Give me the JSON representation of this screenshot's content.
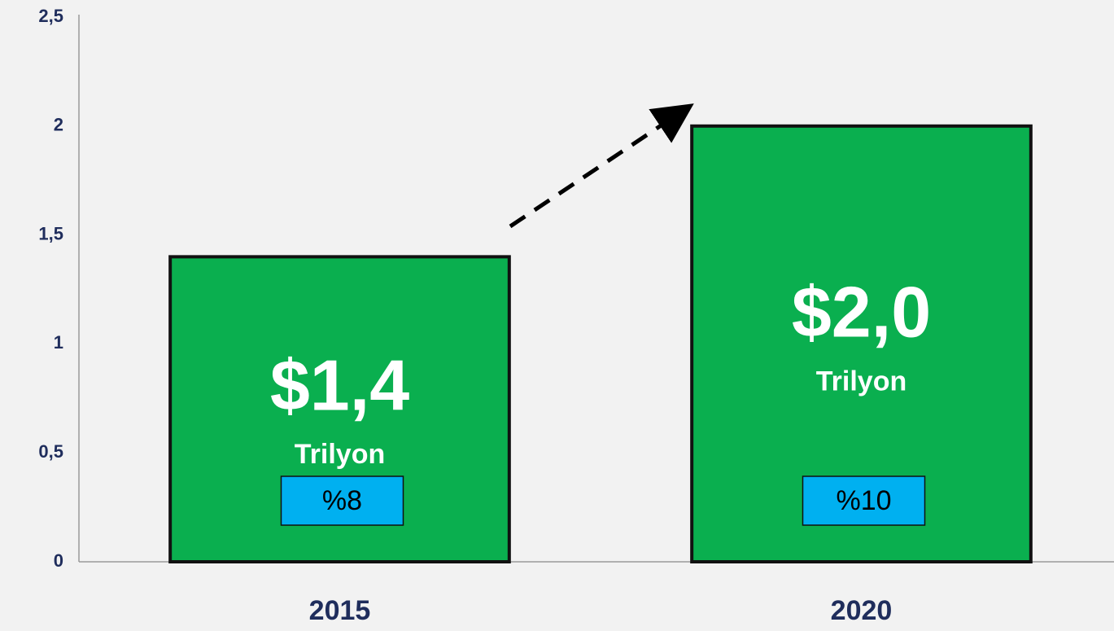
{
  "chart_data": {
    "type": "bar",
    "categories": [
      "2015",
      "2020"
    ],
    "values": [
      1.4,
      2.0
    ],
    "value_labels": [
      "$1,4",
      "$2,0"
    ],
    "unit_labels": [
      "Trilyon",
      "Trilyon"
    ],
    "share_labels": [
      "%8",
      "%10"
    ],
    "color": "#0aaf4f",
    "ylim": [
      0,
      2.5
    ],
    "yticks": [
      0,
      {
        "value": 0.5,
        "label": "0,5"
      },
      1,
      {
        "value": 1.5,
        "label": "1,5"
      },
      2,
      {
        "value": 2.5,
        "label": "2,5"
      }
    ],
    "grid": false
  }
}
